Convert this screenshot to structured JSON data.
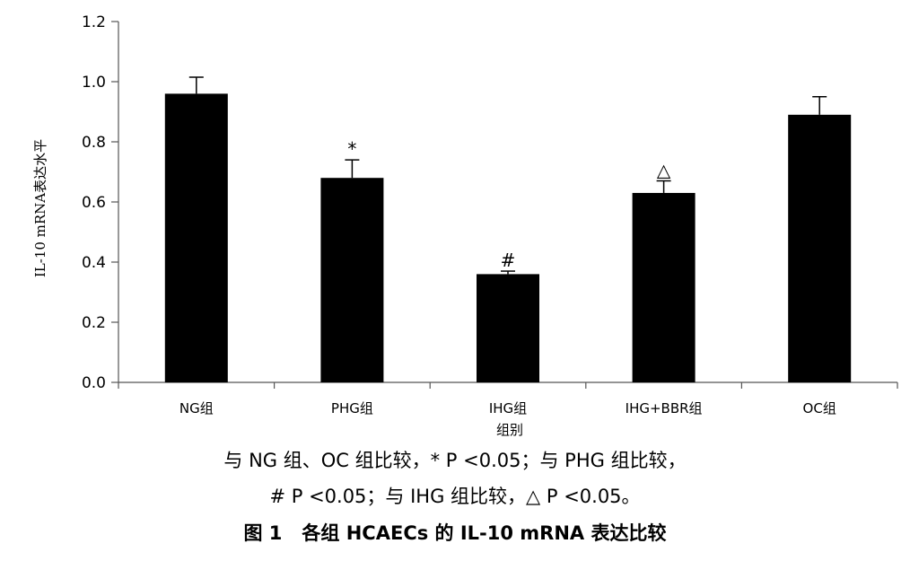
{
  "chart_data": {
    "type": "bar",
    "title": "",
    "xlabel": "组别",
    "ylabel": "IL-10 mRNA表达水平",
    "ylim": [
      0,
      1.2
    ],
    "yticks": [
      "0.0",
      "0.2",
      "0.4",
      "0.6",
      "0.8",
      "1.0",
      "1.2"
    ],
    "categories": [
      "NG组",
      "PHG组",
      "IHG组",
      "IHG+BBR组",
      "OC组"
    ],
    "values": [
      0.96,
      0.68,
      0.36,
      0.63,
      0.89
    ],
    "errors": [
      0.055,
      0.06,
      0.01,
      0.04,
      0.06
    ],
    "annotations": [
      "",
      "*",
      "#",
      "△",
      ""
    ],
    "bar_color": "#000000",
    "grid": false,
    "legend": "none"
  },
  "caption": {
    "note_line1": "与 NG 组、OC 组比较，* P <0.05；与 PHG 组比较，",
    "note_line2": "# P <0.05；与 IHG 组比较，△ P <0.05。",
    "figure_number": "图 1",
    "figure_title": "各组 HCAECs 的 IL-10 mRNA 表达比较"
  }
}
